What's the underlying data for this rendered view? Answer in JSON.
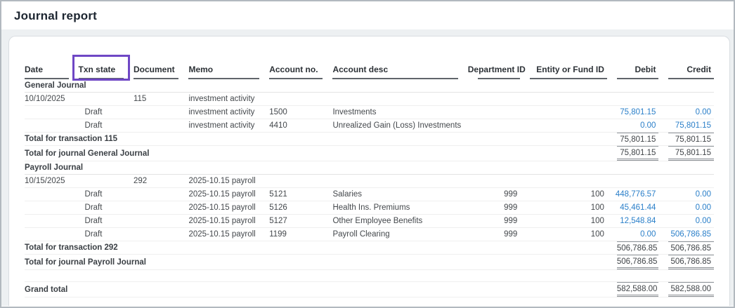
{
  "page": {
    "title": "Journal report"
  },
  "colors": {
    "highlight_box": "#6F47C5",
    "amount_link": "#2A7FC9"
  },
  "table": {
    "columns": [
      {
        "key": "date",
        "label": "Date",
        "align": "left"
      },
      {
        "key": "txn_state",
        "label": "Txn state",
        "align": "left",
        "highlighted": true
      },
      {
        "key": "document",
        "label": "Document",
        "align": "left"
      },
      {
        "key": "memo",
        "label": "Memo",
        "align": "left"
      },
      {
        "key": "account_no",
        "label": "Account no.",
        "align": "left"
      },
      {
        "key": "account_desc",
        "label": "Account desc",
        "align": "left"
      },
      {
        "key": "department_id",
        "label": "Department ID",
        "align": "right"
      },
      {
        "key": "entity_or_fund_id",
        "label": "Entity or Fund ID",
        "align": "right"
      },
      {
        "key": "debit",
        "label": "Debit",
        "align": "right"
      },
      {
        "key": "credit",
        "label": "Credit",
        "align": "right"
      }
    ],
    "rows": [
      {
        "type": "section",
        "label": "General Journal"
      },
      {
        "type": "txn",
        "cells": {
          "date": "10/10/2025",
          "document": "115",
          "memo": "investment activity"
        }
      },
      {
        "type": "detail",
        "cells": {
          "txn_state": "Draft",
          "memo": "investment activity",
          "account_no": "1500",
          "account_desc": "Investments",
          "department_id": "",
          "entity_or_fund_id": "",
          "debit": "75,801.15",
          "credit": "0.00"
        }
      },
      {
        "type": "detail",
        "cells": {
          "txn_state": "Draft",
          "memo": "investment activity",
          "account_no": "4410",
          "account_desc": "Unrealized Gain (Loss) Investments",
          "department_id": "",
          "entity_or_fund_id": "",
          "debit": "0.00",
          "credit": "75,801.15"
        }
      },
      {
        "type": "total",
        "label": "Total for transaction 115",
        "debit": "75,801.15",
        "credit": "75,801.15",
        "rule": "top"
      },
      {
        "type": "total",
        "label": "Total for journal General Journal",
        "debit": "75,801.15",
        "credit": "75,801.15",
        "rule": "top-double"
      },
      {
        "type": "section",
        "label": "Payroll Journal"
      },
      {
        "type": "txn",
        "cells": {
          "date": "10/15/2025",
          "document": "292",
          "memo": "2025-10.15 payroll"
        }
      },
      {
        "type": "detail",
        "cells": {
          "txn_state": "Draft",
          "memo": "2025-10.15 payroll",
          "account_no": "5121",
          "account_desc": "Salaries",
          "department_id": "999",
          "entity_or_fund_id": "100",
          "debit": "448,776.57",
          "credit": "0.00"
        }
      },
      {
        "type": "detail",
        "cells": {
          "txn_state": "Draft",
          "memo": "2025-10.15 payroll",
          "account_no": "5126",
          "account_desc": "Health Ins. Premiums",
          "department_id": "999",
          "entity_or_fund_id": "100",
          "debit": "45,461.44",
          "credit": "0.00"
        }
      },
      {
        "type": "detail",
        "cells": {
          "txn_state": "Draft",
          "memo": "2025-10.15 payroll",
          "account_no": "5127",
          "account_desc": "Other Employee Benefits",
          "department_id": "999",
          "entity_or_fund_id": "100",
          "debit": "12,548.84",
          "credit": "0.00"
        }
      },
      {
        "type": "detail",
        "cells": {
          "txn_state": "Draft",
          "memo": "2025-10.15 payroll",
          "account_no": "1199",
          "account_desc": "Payroll Clearing",
          "department_id": "999",
          "entity_or_fund_id": "100",
          "debit": "0.00",
          "credit": "506,786.85"
        }
      },
      {
        "type": "total",
        "label": "Total for transaction 292",
        "debit": "506,786.85",
        "credit": "506,786.85",
        "rule": "top"
      },
      {
        "type": "total",
        "label": "Total for journal Payroll Journal",
        "debit": "506,786.85",
        "credit": "506,786.85",
        "rule": "top-double"
      },
      {
        "type": "spacer"
      },
      {
        "type": "total",
        "label": "Grand total",
        "debit": "582,588.00",
        "credit": "582,588.00",
        "rule": "top-double"
      }
    ]
  }
}
